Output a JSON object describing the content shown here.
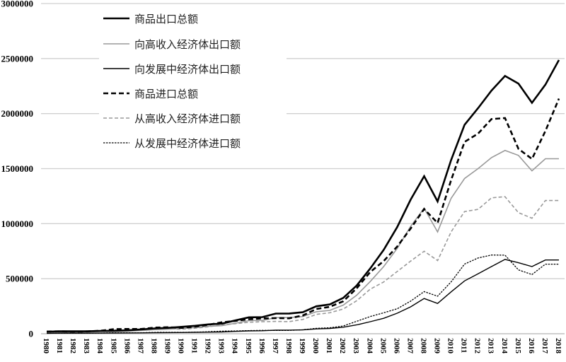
{
  "chart_data": {
    "type": "line",
    "title": "",
    "xlabel": "",
    "ylabel": "",
    "ylim": [
      0,
      3000000
    ],
    "yticks": [
      0,
      500000,
      1000000,
      1500000,
      2000000,
      2500000,
      3000000
    ],
    "ytick_labels": [
      "0",
      "500000",
      "1000000",
      "1500000",
      "2000000",
      "2500000",
      "3000000"
    ],
    "grid": true,
    "legend_position": "upper-left",
    "x": [
      "1980",
      "1981",
      "1982",
      "1983",
      "1984",
      "1985",
      "1986",
      "1987",
      "1988",
      "1989",
      "1990",
      "1991",
      "1992",
      "1993",
      "1994",
      "1995",
      "1996",
      "1997",
      "1998",
      "1999",
      "2000",
      "2001",
      "2002",
      "2003",
      "2004",
      "2005",
      "2006",
      "2007",
      "2008",
      "2009",
      "2010",
      "2011",
      "2012",
      "2013",
      "2014",
      "2015",
      "2016",
      "2017",
      "2018"
    ],
    "series": [
      {
        "name": "商品出口总额",
        "style": "solid-thick",
        "color": "#000000",
        "values": [
          18000,
          22000,
          22000,
          22000,
          26000,
          27000,
          31000,
          39000,
          48000,
          53000,
          62000,
          72000,
          85000,
          92000,
          121000,
          149000,
          151000,
          183000,
          184000,
          195000,
          249000,
          266000,
          326000,
          438000,
          593000,
          762000,
          969000,
          1218000,
          1431000,
          1202000,
          1578000,
          1898000,
          2049000,
          2209000,
          2342000,
          2273000,
          2098000,
          2263000,
          2487000
        ]
      },
      {
        "name": "向高收入经济体出口额",
        "style": "solid-gray",
        "color": "#999999",
        "values": [
          12000,
          15000,
          15000,
          16000,
          19000,
          20000,
          23000,
          29000,
          37000,
          41000,
          48000,
          56000,
          67000,
          73000,
          96000,
          119000,
          121000,
          146000,
          147000,
          156000,
          200000,
          212000,
          260000,
          350000,
          474000,
          610000,
          775000,
          975000,
          1140000,
          925000,
          1230000,
          1410000,
          1500000,
          1600000,
          1665000,
          1620000,
          1480000,
          1590000,
          1590000
        ]
      },
      {
        "name": "向发展中经济体出口额",
        "style": "solid-thin",
        "color": "#000000",
        "values": [
          4000,
          5000,
          5000,
          5000,
          6000,
          6000,
          7000,
          8000,
          9000,
          10000,
          11000,
          13000,
          14000,
          16000,
          21000,
          26000,
          27000,
          32000,
          33000,
          35000,
          44000,
          48000,
          59000,
          80000,
          109000,
          140000,
          186000,
          244000,
          320000,
          275000,
          380000,
          480000,
          545000,
          610000,
          675000,
          645000,
          610000,
          670000,
          670000
        ]
      },
      {
        "name": "商品进口总额",
        "style": "dashed-thick",
        "color": "#000000",
        "values": [
          20000,
          22000,
          19000,
          21000,
          27000,
          42000,
          43000,
          43000,
          55000,
          59000,
          53000,
          64000,
          81000,
          104000,
          116000,
          132000,
          139000,
          142000,
          140000,
          166000,
          225000,
          244000,
          295000,
          413000,
          561000,
          660000,
          792000,
          956000,
          1133000,
          1006000,
          1396000,
          1743000,
          1818000,
          1950000,
          1959000,
          1680000,
          1588000,
          1842000,
          2136000
        ]
      },
      {
        "name": "从高收入经济体进口额",
        "style": "dashed-gray",
        "color": "#999999",
        "values": [
          15000,
          17000,
          14000,
          16000,
          21000,
          33000,
          34000,
          34000,
          43000,
          46000,
          41000,
          50000,
          63000,
          81000,
          91000,
          104000,
          109000,
          112000,
          110000,
          130000,
          176000,
          190000,
          225000,
          300000,
          405000,
          470000,
          565000,
          660000,
          750000,
          665000,
          925000,
          1110000,
          1130000,
          1235000,
          1245000,
          1100000,
          1050000,
          1210000,
          1210000
        ]
      },
      {
        "name": "从发展中经济体进口额",
        "style": "dotted",
        "color": "#000000",
        "values": [
          5000,
          5000,
          5000,
          5000,
          6000,
          9000,
          9000,
          9000,
          12000,
          13000,
          12000,
          14000,
          18000,
          23000,
          25000,
          28000,
          30000,
          30000,
          30000,
          36000,
          49000,
          54000,
          70000,
          113000,
          156000,
          190000,
          227000,
          296000,
          383000,
          341000,
          471000,
          633000,
          688000,
          715000,
          714000,
          580000,
          538000,
          632000,
          632000
        ]
      }
    ]
  }
}
